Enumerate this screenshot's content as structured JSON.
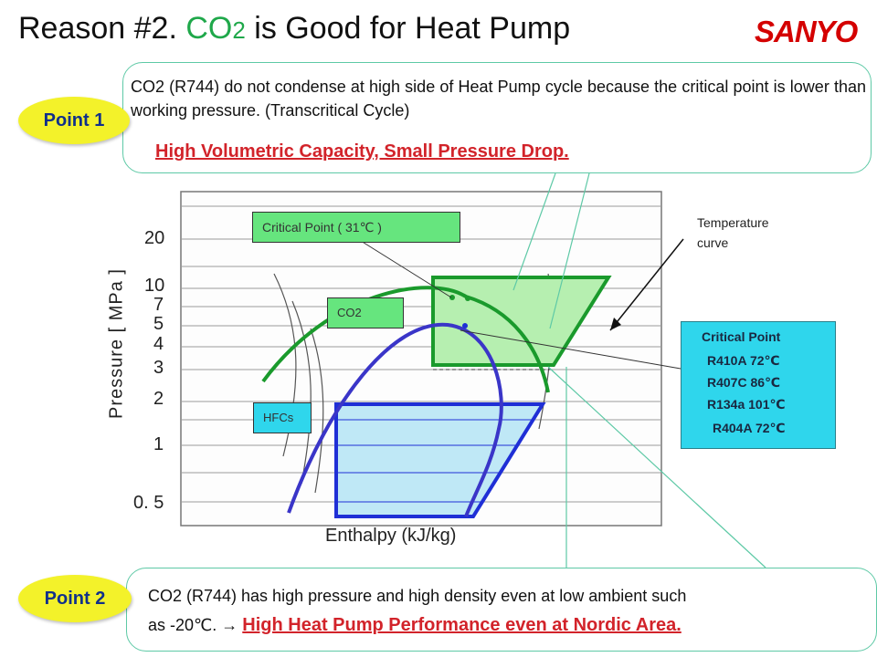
{
  "title": {
    "prefix": "Reason #2.  ",
    "co": "CO",
    "sub": "2",
    "suffix": " is Good for Heat Pump"
  },
  "logo": "SANYO",
  "point1": {
    "badge": "Point 1",
    "text": "CO2 (R744) do not condense at high side of Heat Pump cycle because the critical point is lower than working pressure. (Transcritical Cycle)",
    "highlight": "High Volumetric Capacity, Small Pressure Drop."
  },
  "point2": {
    "badge": "Point 2",
    "line1": "CO2 (R744) has high pressure and high density even at low ambient such",
    "line2_prefix": "as -20℃.  ",
    "arrow": "→",
    "highlight": "High Heat Pump Performance even at Nordic Area."
  },
  "chart": {
    "ylabel": "Pressure [ MPa ]",
    "xlabel": "Enthalpy (kJ/kg)",
    "yticks": [
      "20",
      "10",
      "7",
      "5",
      "4",
      "3",
      "2",
      "1",
      "0. 5"
    ],
    "tag_critical": "Critical Point ( 31℃ )",
    "tag_co2": "CO2",
    "tag_hfcs": "HFCs",
    "temperature_label_1": "Temperature",
    "temperature_label_2": "curve"
  },
  "critical_points": {
    "header": "Critical Point",
    "rows": [
      "R410A  72℃",
      "R407C  86℃",
      "R134a 101℃",
      "R404A  72℃"
    ]
  },
  "colors": {
    "co2_green": "#1a9a2c",
    "co2_fill": "#b6efb0",
    "hfc_blue": "#1f2fd6",
    "hfc_fill": "#bfe8f6",
    "badge_yellow": "#f3f22a",
    "highlight_red": "#d2232a",
    "callout_border": "#5ec9a6",
    "info_cyan": "#2fd6ec"
  }
}
